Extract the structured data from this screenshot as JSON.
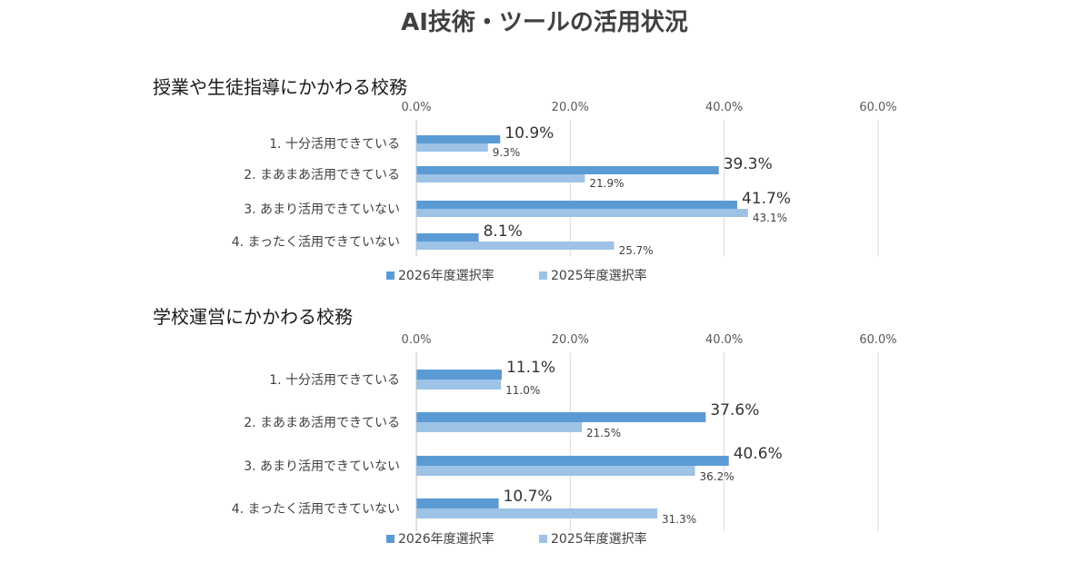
{
  "title": "AI技術・ツールの活用状況",
  "colors": {
    "s2026": "#5b9bd5",
    "s2025": "#9dc3e6",
    "grid": "#d9d9d9"
  },
  "chart_data": [
    {
      "type": "bar",
      "orientation": "horizontal",
      "title": "授業や生徒指導にかかわる校務",
      "categories": [
        "1. 十分活用できている",
        "2. まあまあ活用できている",
        "3. あまり活用できていない",
        "4. まったく活用できていない"
      ],
      "series": [
        {
          "name": "2026年度選択率",
          "values": [
            10.9,
            39.3,
            41.7,
            8.1
          ],
          "labels": [
            "10.9%",
            "39.3%",
            "41.7%",
            "8.1%"
          ]
        },
        {
          "name": "2025年度選択率",
          "values": [
            9.3,
            21.9,
            43.1,
            25.7
          ],
          "labels": [
            "9.3%",
            "21.9%",
            "43.1%",
            "25.7%"
          ]
        }
      ],
      "xlim": [
        0,
        60
      ],
      "ticks": [
        "0.0%",
        "20.0%",
        "40.0%",
        "60.0%"
      ],
      "tick_values": [
        0,
        20,
        40,
        60
      ],
      "legend": "bottom"
    },
    {
      "type": "bar",
      "orientation": "horizontal",
      "title": "学校運営にかかわる校務",
      "categories": [
        "1. 十分活用できている",
        "2. まあまあ活用できている",
        "3. あまり活用できていない",
        "4. まったく活用できていない"
      ],
      "series": [
        {
          "name": "2026年度選択率",
          "values": [
            11.1,
            37.6,
            40.6,
            10.7
          ],
          "labels": [
            "11.1%",
            "37.6%",
            "40.6%",
            "10.7%"
          ]
        },
        {
          "name": "2025年度選択率",
          "values": [
            11.0,
            21.5,
            36.2,
            31.3
          ],
          "labels": [
            "11.0%",
            "21.5%",
            "36.2%",
            "31.3%"
          ]
        }
      ],
      "xlim": [
        0,
        60
      ],
      "ticks": [
        "0.0%",
        "20.0%",
        "40.0%",
        "60.0%"
      ],
      "tick_values": [
        0,
        20,
        40,
        60
      ],
      "legend": "bottom"
    }
  ]
}
